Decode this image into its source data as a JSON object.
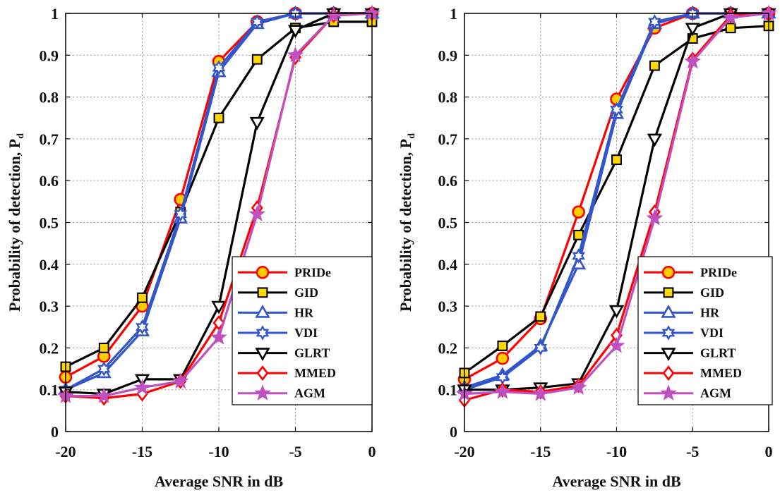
{
  "chart_data": [
    {
      "type": "line",
      "title": "",
      "xlabel": "Average SNR in dB",
      "ylabel": "Probability of detection, P",
      "ylabel_subscript": "d",
      "xlim": [
        -20,
        0
      ],
      "ylim": [
        0,
        1
      ],
      "xticks": [
        "-20",
        "-15",
        "-10",
        "-5",
        "0"
      ],
      "yticks": [
        "0",
        "0.1",
        "0.2",
        "0.3",
        "0.4",
        "0.5",
        "0.6",
        "0.7",
        "0.8",
        "0.9",
        "1"
      ],
      "grid": true,
      "legend_position": "bottom-right",
      "x": [
        -20,
        -17.5,
        -15,
        -12.5,
        -10,
        -7.5,
        -5,
        -2.5,
        0
      ],
      "series": [
        {
          "name": "PRIDe",
          "color": "#ff0000",
          "marker": "circle",
          "marker_fill": "#ffcc00",
          "values": [
            0.13,
            0.18,
            0.3,
            0.555,
            0.885,
            0.98,
            1.0,
            1.0,
            1.0
          ]
        },
        {
          "name": "GID",
          "color": "#000000",
          "marker": "square",
          "marker_fill": "#ffd700",
          "values": [
            0.155,
            0.2,
            0.32,
            0.525,
            0.75,
            0.89,
            0.965,
            0.98,
            0.98
          ]
        },
        {
          "name": "HR",
          "color": "#3355cc",
          "marker": "triangle-up",
          "marker_fill": "none",
          "values": [
            0.1,
            0.14,
            0.24,
            0.51,
            0.86,
            0.975,
            1.0,
            1.0,
            1.0
          ]
        },
        {
          "name": "VDI",
          "color": "#3355cc",
          "marker": "hexagram",
          "marker_fill": "none",
          "values": [
            0.1,
            0.15,
            0.25,
            0.52,
            0.87,
            0.98,
            1.0,
            1.0,
            1.0
          ]
        },
        {
          "name": "GLRT",
          "color": "#000000",
          "marker": "triangle-down",
          "marker_fill": "none",
          "values": [
            0.095,
            0.09,
            0.125,
            0.125,
            0.3,
            0.74,
            0.96,
            1.0,
            1.0
          ]
        },
        {
          "name": "MMED",
          "color": "#ff0000",
          "marker": "diamond",
          "marker_fill": "none",
          "values": [
            0.085,
            0.08,
            0.09,
            0.12,
            0.26,
            0.535,
            0.895,
            0.995,
            1.0
          ]
        },
        {
          "name": "AGM",
          "color": "#c050c0",
          "marker": "pentagram",
          "marker_fill": "#c050c0",
          "values": [
            0.085,
            0.085,
            0.105,
            0.12,
            0.225,
            0.52,
            0.9,
            0.995,
            1.0
          ]
        }
      ]
    },
    {
      "type": "line",
      "title": "",
      "xlabel": "Average SNR in dB",
      "ylabel": "Probability of detection, P",
      "ylabel_subscript": "d",
      "xlim": [
        -20,
        0
      ],
      "ylim": [
        0,
        1
      ],
      "xticks": [
        "-20",
        "-15",
        "-10",
        "-5",
        "0"
      ],
      "yticks": [
        "0",
        "0.1",
        "0.2",
        "0.3",
        "0.4",
        "0.5",
        "0.6",
        "0.7",
        "0.8",
        "0.9",
        "1"
      ],
      "grid": true,
      "legend_position": "bottom-right",
      "x": [
        -20,
        -17.5,
        -15,
        -12.5,
        -10,
        -7.5,
        -5,
        -2.5,
        0
      ],
      "series": [
        {
          "name": "PRIDe",
          "color": "#ff0000",
          "marker": "circle",
          "marker_fill": "#ffcc00",
          "values": [
            0.125,
            0.175,
            0.27,
            0.525,
            0.795,
            0.965,
            1.0,
            1.0,
            1.0
          ]
        },
        {
          "name": "GID",
          "color": "#000000",
          "marker": "square",
          "marker_fill": "#ffd700",
          "values": [
            0.14,
            0.205,
            0.275,
            0.47,
            0.65,
            0.875,
            0.94,
            0.965,
            0.97
          ]
        },
        {
          "name": "HR",
          "color": "#3355cc",
          "marker": "triangle-up",
          "marker_fill": "none",
          "values": [
            0.105,
            0.135,
            0.205,
            0.4,
            0.76,
            0.975,
            1.0,
            1.0,
            1.0
          ]
        },
        {
          "name": "VDI",
          "color": "#3355cc",
          "marker": "hexagram",
          "marker_fill": "none",
          "values": [
            0.1,
            0.13,
            0.2,
            0.42,
            0.77,
            0.98,
            1.0,
            1.0,
            1.0
          ]
        },
        {
          "name": "GLRT",
          "color": "#000000",
          "marker": "triangle-down",
          "marker_fill": "none",
          "values": [
            0.1,
            0.1,
            0.105,
            0.115,
            0.29,
            0.7,
            0.965,
            1.0,
            1.0
          ]
        },
        {
          "name": "MMED",
          "color": "#ff0000",
          "marker": "diamond",
          "marker_fill": "none",
          "values": [
            0.075,
            0.1,
            0.095,
            0.11,
            0.23,
            0.525,
            0.89,
            0.995,
            1.0
          ]
        },
        {
          "name": "AGM",
          "color": "#c050c0",
          "marker": "pentagram",
          "marker_fill": "#c050c0",
          "values": [
            0.09,
            0.095,
            0.09,
            0.105,
            0.205,
            0.51,
            0.885,
            0.99,
            1.0
          ]
        }
      ]
    }
  ]
}
